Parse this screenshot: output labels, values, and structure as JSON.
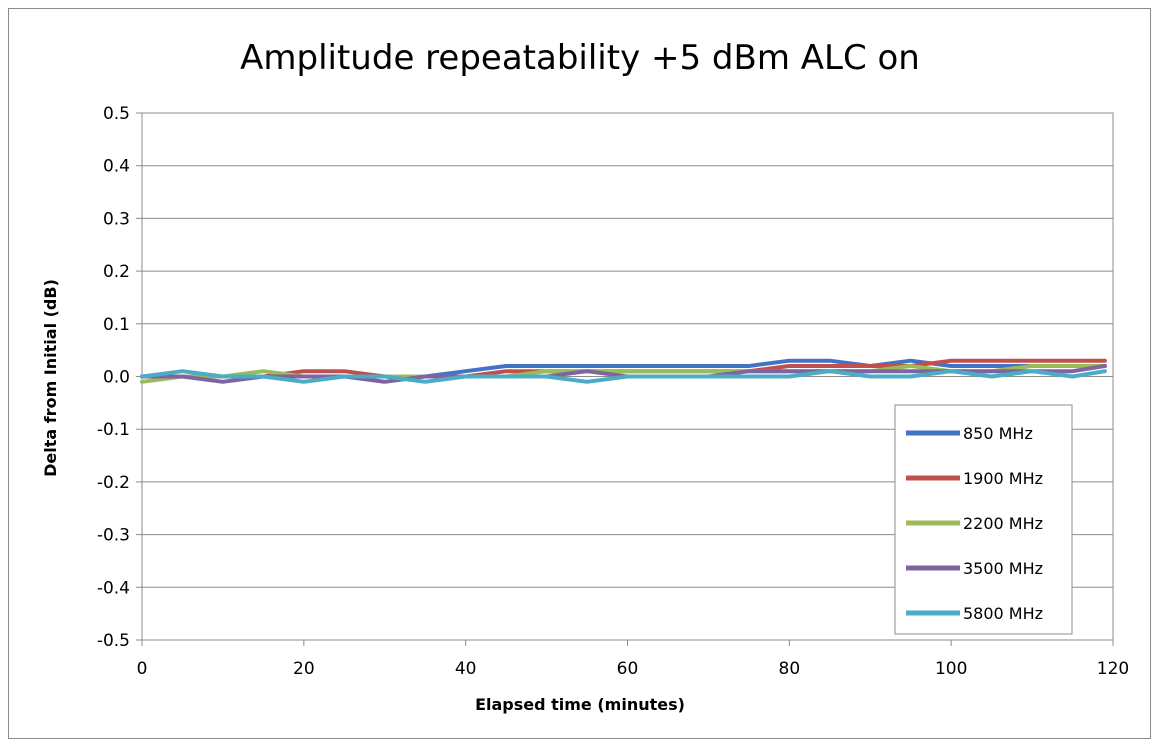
{
  "chart_data": {
    "type": "line",
    "title": "Amplitude repeatability +5 dBm ALC on",
    "xlabel": "Elapsed time (minutes)",
    "ylabel": "Delta from Initial (dB)",
    "xlim": [
      0,
      120
    ],
    "ylim": [
      -0.5,
      0.5
    ],
    "xticks": [
      "0",
      "20",
      "40",
      "60",
      "80",
      "100",
      "120"
    ],
    "yticks": [
      "0.5",
      "0.4",
      "0.3",
      "0.2",
      "0.1",
      "0.0",
      "-0.1",
      "-0.2",
      "-0.3",
      "-0.4",
      "-0.5"
    ],
    "grid": "horizontal",
    "legend_position": "lower-right",
    "x": [
      0,
      5,
      10,
      15,
      20,
      25,
      30,
      35,
      40,
      45,
      50,
      55,
      60,
      65,
      70,
      75,
      80,
      85,
      90,
      95,
      100,
      105,
      110,
      115,
      119
    ],
    "series": [
      {
        "name": "850 MHz",
        "color": "#4472c4",
        "values": [
          0.0,
          0.0,
          0.0,
          0.0,
          0.0,
          0.0,
          0.0,
          0.0,
          0.01,
          0.02,
          0.02,
          0.02,
          0.02,
          0.02,
          0.02,
          0.02,
          0.03,
          0.03,
          0.02,
          0.03,
          0.02,
          0.02,
          0.02,
          0.02,
          0.02
        ]
      },
      {
        "name": "1900 MHz",
        "color": "#c0504d",
        "values": [
          0.0,
          0.0,
          0.0,
          0.0,
          0.01,
          0.01,
          0.0,
          0.0,
          0.0,
          0.01,
          0.01,
          0.01,
          0.01,
          0.01,
          0.01,
          0.01,
          0.02,
          0.02,
          0.02,
          0.02,
          0.03,
          0.03,
          0.03,
          0.03,
          0.03
        ]
      },
      {
        "name": "2200 MHz",
        "color": "#9bbb59",
        "values": [
          -0.01,
          0.0,
          0.0,
          0.01,
          0.0,
          0.0,
          0.0,
          0.0,
          0.0,
          0.0,
          0.01,
          0.01,
          0.01,
          0.01,
          0.01,
          0.01,
          0.01,
          0.01,
          0.01,
          0.02,
          0.01,
          0.01,
          0.02,
          0.02,
          0.02
        ]
      },
      {
        "name": "3500 MHz",
        "color": "#8064a2",
        "values": [
          0.0,
          0.0,
          -0.01,
          0.0,
          0.0,
          0.0,
          -0.01,
          0.0,
          0.0,
          0.0,
          0.0,
          0.01,
          0.0,
          0.0,
          0.0,
          0.01,
          0.01,
          0.01,
          0.01,
          0.01,
          0.01,
          0.01,
          0.01,
          0.01,
          0.02
        ]
      },
      {
        "name": "5800 MHz",
        "color": "#4bacc6",
        "values": [
          0.0,
          0.01,
          0.0,
          0.0,
          -0.01,
          0.0,
          0.0,
          -0.01,
          0.0,
          0.0,
          0.0,
          -0.01,
          0.0,
          0.0,
          0.0,
          0.0,
          0.0,
          0.01,
          0.0,
          0.0,
          0.01,
          0.0,
          0.01,
          0.0,
          0.01
        ]
      }
    ]
  }
}
